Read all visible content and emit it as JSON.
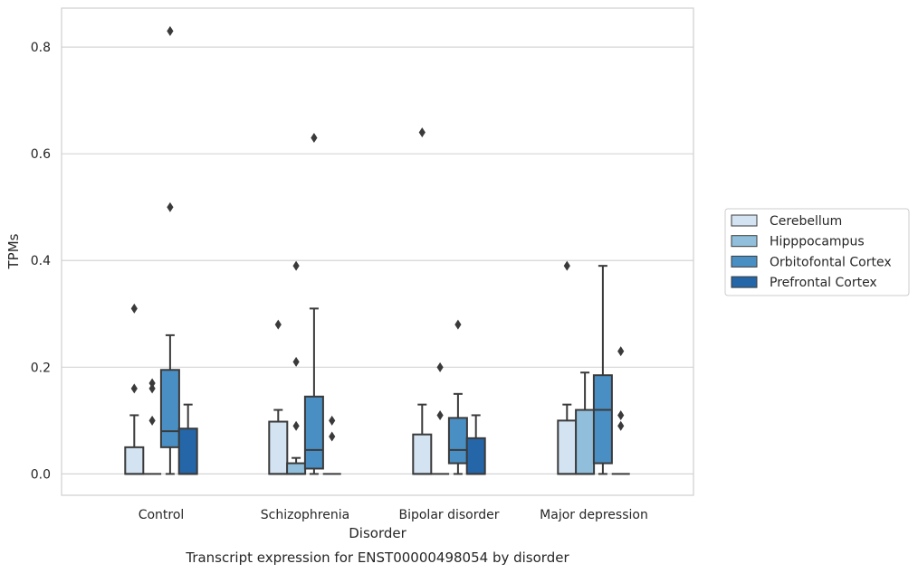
{
  "chart_data": {
    "type": "boxplot",
    "title": "Transcript expression for ENST00000498054 by disorder",
    "xlabel": "Disorder",
    "ylabel": "TPMs",
    "categories": [
      "Control",
      "Schizophrenia",
      "Bipolar disorder",
      "Major depression"
    ],
    "ylim": [
      -0.04,
      0.873
    ],
    "yticks": [
      "0.0",
      "0.2",
      "0.4",
      "0.6",
      "0.8"
    ],
    "grid": true,
    "legend_position": "right",
    "colors": {
      "Cerebellum": "#d3e3f1",
      "Hipppocampus": "#91bfdb",
      "Orbitofontal Cortex": "#4a8fc3",
      "Prefrontal Cortex": "#2466a8",
      "box_edge": "#3a3a3a",
      "grid": "#d5d5d5",
      "frame": "#cfcfcf"
    },
    "series": [
      {
        "name": "Cerebellum",
        "boxes": [
          {
            "q1": 0.0,
            "median": 0.0,
            "q3": 0.05,
            "whisker_low": 0.0,
            "whisker_high": 0.11,
            "outliers": [
              0.31,
              0.16
            ]
          },
          {
            "q1": 0.0,
            "median": 0.0,
            "q3": 0.098,
            "whisker_low": 0.0,
            "whisker_high": 0.12,
            "outliers": [
              0.28
            ]
          },
          {
            "q1": 0.0,
            "median": 0.0,
            "q3": 0.074,
            "whisker_low": 0.0,
            "whisker_high": 0.13,
            "outliers": [
              0.64
            ]
          },
          {
            "q1": 0.0,
            "median": 0.0,
            "q3": 0.1,
            "whisker_low": 0.0,
            "whisker_high": 0.13,
            "outliers": [
              0.39
            ]
          }
        ]
      },
      {
        "name": "Hipppocampus",
        "boxes": [
          {
            "q1": 0.0,
            "median": 0.0,
            "q3": 0.0,
            "whisker_low": 0.0,
            "whisker_high": 0.0,
            "outliers": [
              0.17,
              0.16,
              0.1
            ]
          },
          {
            "q1": 0.0,
            "median": 0.0,
            "q3": 0.02,
            "whisker_low": 0.0,
            "whisker_high": 0.03,
            "outliers": [
              0.39,
              0.21,
              0.09
            ]
          },
          {
            "q1": 0.0,
            "median": 0.0,
            "q3": 0.0,
            "whisker_low": 0.0,
            "whisker_high": 0.0,
            "outliers": [
              0.2,
              0.11
            ]
          },
          {
            "q1": 0.0,
            "median": 0.0,
            "q3": 0.12,
            "whisker_low": 0.0,
            "whisker_high": 0.19,
            "outliers": []
          }
        ]
      },
      {
        "name": "Orbitofontal Cortex",
        "boxes": [
          {
            "q1": 0.05,
            "median": 0.08,
            "q3": 0.195,
            "whisker_low": 0.0,
            "whisker_high": 0.26,
            "outliers": [
              0.83,
              0.5
            ]
          },
          {
            "q1": 0.01,
            "median": 0.045,
            "q3": 0.145,
            "whisker_low": 0.0,
            "whisker_high": 0.31,
            "outliers": [
              0.63
            ]
          },
          {
            "q1": 0.02,
            "median": 0.045,
            "q3": 0.105,
            "whisker_low": 0.0,
            "whisker_high": 0.15,
            "outliers": [
              0.28
            ]
          },
          {
            "q1": 0.02,
            "median": 0.12,
            "q3": 0.185,
            "whisker_low": 0.0,
            "whisker_high": 0.39,
            "outliers": []
          }
        ]
      },
      {
        "name": "Prefrontal Cortex",
        "boxes": [
          {
            "q1": 0.0,
            "median": 0.0,
            "q3": 0.085,
            "whisker_low": 0.0,
            "whisker_high": 0.13,
            "outliers": []
          },
          {
            "q1": 0.0,
            "median": 0.0,
            "q3": 0.0,
            "whisker_low": 0.0,
            "whisker_high": 0.0,
            "outliers": [
              0.1,
              0.07
            ]
          },
          {
            "q1": 0.0,
            "median": 0.0,
            "q3": 0.067,
            "whisker_low": 0.0,
            "whisker_high": 0.11,
            "outliers": []
          },
          {
            "q1": 0.0,
            "median": 0.0,
            "q3": 0.0,
            "whisker_low": 0.0,
            "whisker_high": 0.0,
            "outliers": [
              0.23,
              0.11,
              0.09
            ]
          }
        ]
      }
    ]
  }
}
